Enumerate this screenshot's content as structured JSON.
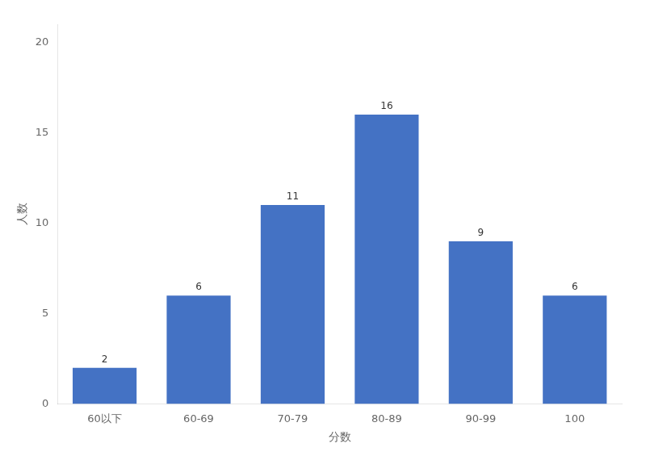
{
  "chart_data": {
    "type": "bar",
    "categories": [
      "60以下",
      "60-69",
      "70-79",
      "80-89",
      "90-99",
      "100"
    ],
    "values": [
      2,
      6,
      11,
      16,
      9,
      6
    ],
    "color": "#4472C4",
    "xlabel": "分数",
    "ylabel": "人数",
    "ylim": [
      0,
      21
    ],
    "yticks": [
      0,
      5,
      10,
      15,
      20
    ],
    "grid": false,
    "data_labels": true
  }
}
